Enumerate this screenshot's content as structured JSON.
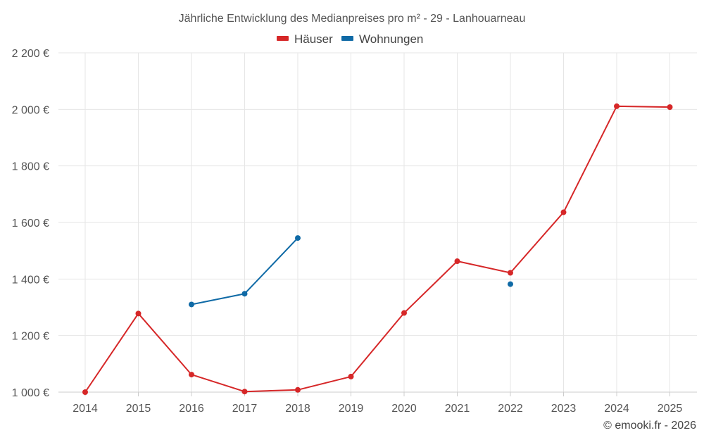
{
  "chart_data": {
    "type": "line",
    "title": "Jährliche Entwicklung des Medianpreises pro m² - 29 - Lanhouarneau",
    "xlabel": "",
    "ylabel": "",
    "categories": [
      "2014",
      "2015",
      "2016",
      "2017",
      "2018",
      "2019",
      "2020",
      "2021",
      "2022",
      "2023",
      "2024",
      "2025"
    ],
    "ylim": [
      1000,
      2200
    ],
    "yticks": [
      1000,
      1200,
      1400,
      1600,
      1800,
      2000,
      2200
    ],
    "ytick_labels": [
      "1 000 €",
      "1 200 €",
      "1 400 €",
      "1 600 €",
      "1 800 €",
      "2 000 €",
      "2 200 €"
    ],
    "grid": true,
    "legend_position": "top-center",
    "series": [
      {
        "name": "Häuser",
        "color": "#d62728",
        "values": [
          1000,
          1278,
          1062,
          1002,
          1008,
          1055,
          1280,
          1463,
          1422,
          1636,
          2011,
          2008
        ]
      },
      {
        "name": "Wohnungen",
        "color": "#0f6aa6",
        "values": [
          null,
          null,
          1310,
          1348,
          1545,
          null,
          null,
          null,
          1382,
          null,
          null,
          null
        ]
      }
    ]
  },
  "credit": "© emooki.fr - 2026"
}
